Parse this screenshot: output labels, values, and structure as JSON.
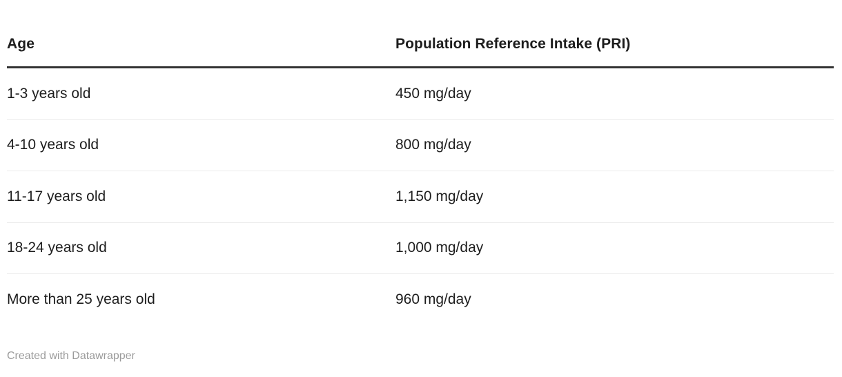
{
  "chart_data": {
    "type": "table",
    "columns": [
      "Age",
      "Population Reference Intake (PRI)"
    ],
    "rows": [
      [
        "1-3 years old",
        "450 mg/day"
      ],
      [
        "4-10 years old",
        "800 mg/day"
      ],
      [
        "11-17 years old",
        "1,150 mg/day"
      ],
      [
        "18-24 years old",
        "1,000 mg/day"
      ],
      [
        "More than 25 years old",
        "960 mg/day"
      ]
    ],
    "title": "",
    "legend_position": "none",
    "grid": "horizontal-dividers"
  },
  "footer": {
    "attribution": "Created with Datawrapper"
  },
  "colors": {
    "text": "#1d1d1d",
    "header_rule": "#333333",
    "row_divider": "#ebebeb",
    "attribution_text": "#9b9b9b",
    "background": "#ffffff"
  }
}
